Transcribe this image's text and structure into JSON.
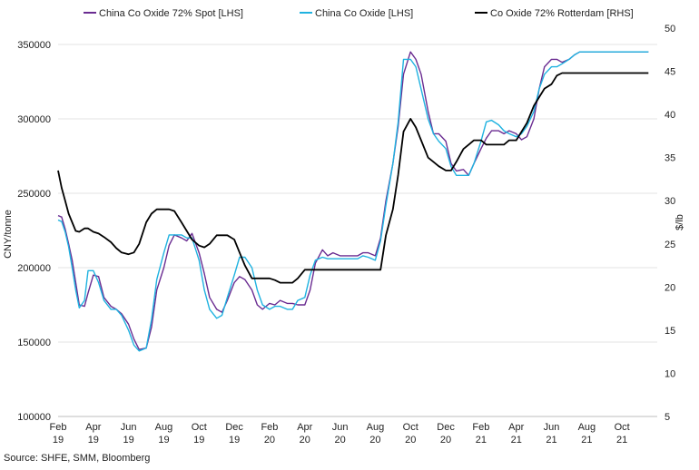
{
  "chart_data": {
    "type": "line",
    "legend_position": "top",
    "grid": true,
    "y_left": {
      "label": "CNY/tonne",
      "min": 100000,
      "max": 350000,
      "ticks": [
        "100000",
        "150000",
        "200000",
        "250000",
        "300000",
        "350000"
      ]
    },
    "y_right": {
      "label": "$/lb",
      "min": 5,
      "max": 50,
      "ticks": [
        "5",
        "10",
        "15",
        "20",
        "25",
        "30",
        "35",
        "40",
        "45",
        "50"
      ]
    },
    "x_ticks": [
      {
        "month": "Feb",
        "year": "19"
      },
      {
        "month": "Apr",
        "year": "19"
      },
      {
        "month": "Jun",
        "year": "19"
      },
      {
        "month": "Aug",
        "year": "19"
      },
      {
        "month": "Oct",
        "year": "19"
      },
      {
        "month": "Dec",
        "year": "19"
      },
      {
        "month": "Feb",
        "year": "20"
      },
      {
        "month": "Apr",
        "year": "20"
      },
      {
        "month": "Jun",
        "year": "20"
      },
      {
        "month": "Aug",
        "year": "20"
      },
      {
        "month": "Oct",
        "year": "20"
      },
      {
        "month": "Dec",
        "year": "20"
      },
      {
        "month": "Feb",
        "year": "21"
      },
      {
        "month": "Apr",
        "year": "21"
      },
      {
        "month": "Jun",
        "year": "21"
      },
      {
        "month": "Aug",
        "year": "21"
      },
      {
        "month": "Oct",
        "year": "21"
      }
    ],
    "series": [
      {
        "name": "China Co Oxide 72% Spot [LHS]",
        "axis": "left",
        "color": "#6a2c91",
        "x": [
          0,
          0.2,
          0.4,
          0.6,
          0.8,
          1,
          1.2,
          1.5,
          1.7,
          2,
          2.3,
          2.6,
          3,
          3.3,
          3.6,
          4,
          4.3,
          4.6,
          5,
          5.3,
          5.6,
          6,
          6.3,
          6.6,
          7,
          7.3,
          7.6,
          8,
          8.3,
          8.6,
          9,
          9.3,
          9.6,
          10,
          10.3,
          10.6,
          11,
          11.3,
          11.6,
          12,
          12.3,
          12.6,
          13,
          13.3,
          13.6,
          14,
          14.3,
          14.6,
          15,
          15.3,
          15.6,
          16,
          16.3,
          16.6,
          17,
          17.3,
          17.6,
          18,
          18.3,
          18.6,
          19,
          19.3,
          19.6,
          20,
          20.3,
          20.6,
          21,
          21.3,
          21.6,
          22,
          22.3,
          22.6,
          23,
          23.3,
          23.6,
          24,
          24.3,
          24.6,
          25,
          25.3,
          25.6,
          26,
          26.3,
          26.6,
          27,
          27.3,
          27.6,
          28,
          28.3,
          28.6,
          29,
          29.3,
          29.6,
          30,
          30.3,
          30.6,
          31,
          31.3,
          31.6,
          32,
          32.3,
          32.6,
          33,
          33.2,
          33.5
        ],
        "y": [
          235000,
          234000,
          226000,
          216000,
          205000,
          190000,
          175000,
          174000,
          183000,
          195000,
          194000,
          180000,
          174000,
          172000,
          169000,
          162000,
          152000,
          145000,
          146000,
          160000,
          185000,
          200000,
          215000,
          222000,
          220000,
          218000,
          223000,
          210000,
          196000,
          180000,
          172000,
          170000,
          178000,
          190000,
          194000,
          192000,
          185000,
          175000,
          172000,
          176000,
          175000,
          178000,
          176000,
          176000,
          175000,
          175000,
          185000,
          203000,
          212000,
          208000,
          210000,
          208000,
          208000,
          208000,
          208000,
          210000,
          210000,
          208000,
          220000,
          245000,
          270000,
          295000,
          330000,
          345000,
          340000,
          330000,
          305000,
          290000,
          290000,
          285000,
          270000,
          265000,
          266000,
          262000,
          270000,
          280000,
          287000,
          292000,
          292000,
          290000,
          292000,
          290000,
          286000,
          288000,
          300000,
          320000,
          335000,
          340000,
          340000,
          338000,
          340000,
          343000,
          345000,
          345000,
          345000,
          345000,
          345000,
          345000,
          345000,
          345000,
          345000,
          345000,
          345000,
          345000,
          345000
        ],
        "x_end": 33.5
      },
      {
        "name": "China Co Oxide [LHS]",
        "axis": "left",
        "color": "#1fb2e0",
        "x": [
          0,
          0.2,
          0.4,
          0.6,
          0.8,
          1,
          1.2,
          1.5,
          1.7,
          2,
          2.3,
          2.6,
          3,
          3.3,
          3.6,
          4,
          4.3,
          4.6,
          5,
          5.3,
          5.6,
          6,
          6.3,
          6.6,
          7,
          7.3,
          7.6,
          8,
          8.3,
          8.6,
          9,
          9.3,
          9.6,
          10,
          10.3,
          10.6,
          11,
          11.3,
          11.6,
          12,
          12.3,
          12.6,
          13,
          13.3,
          13.6,
          14,
          14.3,
          14.6,
          15,
          15.3,
          15.6,
          16,
          16.3,
          16.6,
          17,
          17.3,
          17.6,
          18,
          18.3,
          18.6,
          19,
          19.3,
          19.6,
          20,
          20.3,
          20.6,
          21,
          21.3,
          21.6,
          22,
          22.3,
          22.6,
          23,
          23.3,
          23.6,
          24,
          24.3,
          24.6,
          25,
          25.3,
          25.6,
          26,
          26.3,
          26.6,
          27,
          27.3,
          27.6,
          28,
          28.3,
          28.6,
          29,
          29.3,
          29.6,
          30,
          30.3,
          30.6,
          31,
          31.3,
          31.6,
          32,
          32.3,
          32.6,
          33,
          33.2,
          33.5
        ],
        "y": [
          232000,
          231000,
          224000,
          214000,
          200000,
          185000,
          173000,
          178000,
          198000,
          198000,
          190000,
          178000,
          172000,
          172000,
          168000,
          158000,
          148000,
          144000,
          146000,
          165000,
          192000,
          210000,
          222000,
          222000,
          222000,
          220000,
          220000,
          205000,
          185000,
          172000,
          166000,
          168000,
          180000,
          195000,
          207000,
          207000,
          200000,
          185000,
          175000,
          172000,
          174000,
          174000,
          172000,
          172000,
          178000,
          180000,
          195000,
          205000,
          207000,
          206000,
          206000,
          206000,
          206000,
          206000,
          206000,
          208000,
          207000,
          205000,
          218000,
          242000,
          270000,
          298000,
          340000,
          340000,
          335000,
          320000,
          300000,
          290000,
          285000,
          280000,
          268000,
          262000,
          262000,
          262000,
          270000,
          285000,
          298000,
          299000,
          296000,
          292000,
          290000,
          288000,
          290000,
          295000,
          305000,
          320000,
          330000,
          335000,
          335000,
          337000,
          340000,
          343000,
          345000,
          345000,
          345000,
          345000,
          345000,
          345000,
          345000,
          345000,
          345000,
          345000,
          345000,
          345000,
          345000
        ],
        "x_end": 33.5
      },
      {
        "name": "Co Oxide 72% Rotterdam [RHS]",
        "axis": "right",
        "color": "#000000",
        "x": [
          0,
          0.2,
          0.4,
          0.6,
          0.8,
          1,
          1.2,
          1.5,
          1.7,
          2,
          2.3,
          2.6,
          3,
          3.3,
          3.6,
          4,
          4.3,
          4.6,
          5,
          5.3,
          5.6,
          6,
          6.3,
          6.6,
          7,
          7.3,
          7.6,
          8,
          8.3,
          8.6,
          9,
          9.3,
          9.6,
          10,
          10.3,
          10.6,
          11,
          11.3,
          11.6,
          12,
          12.3,
          12.6,
          13,
          13.3,
          13.6,
          14,
          14.3,
          14.6,
          15,
          15.3,
          15.6,
          16,
          16.3,
          16.6,
          17,
          17.3,
          17.6,
          18,
          18.3,
          18.6,
          19,
          19.3,
          19.6,
          20,
          20.3,
          20.6,
          21,
          21.3,
          21.6,
          22,
          22.3,
          22.6,
          23,
          23.3,
          23.6,
          24,
          24.3,
          24.6,
          25,
          25.3,
          25.6,
          26,
          26.3,
          26.6,
          27,
          27.3,
          27.6,
          28,
          28.3,
          28.6,
          29,
          29.3,
          29.6,
          30,
          30.3,
          30.6,
          31,
          31.3,
          31.6,
          32,
          32.3,
          32.6,
          33,
          33.2,
          33.5
        ],
        "y": [
          33.5,
          31.5,
          30.0,
          28.5,
          27.5,
          26.5,
          26.4,
          26.8,
          26.8,
          26.4,
          26.2,
          25.8,
          25.2,
          24.5,
          24.0,
          23.8,
          24.0,
          25.0,
          27.5,
          28.5,
          29.0,
          29.0,
          29.0,
          28.8,
          27.5,
          26.5,
          25.5,
          24.8,
          24.6,
          25.0,
          26.0,
          26.0,
          26.0,
          25.5,
          24.0,
          22.5,
          21.0,
          21.0,
          21.0,
          21.0,
          20.8,
          20.5,
          20.5,
          20.5,
          21.0,
          22.0,
          22.0,
          22.0,
          22.0,
          22.0,
          22.0,
          22.0,
          22.0,
          22.0,
          22.0,
          22.0,
          22.0,
          22.0,
          22.0,
          26.0,
          29.0,
          33.0,
          38.0,
          39.5,
          38.5,
          37.0,
          35.0,
          34.5,
          34.0,
          33.5,
          33.5,
          34.5,
          36.0,
          36.5,
          37.0,
          37.0,
          36.5,
          36.5,
          36.5,
          36.5,
          37.0,
          37.0,
          38.0,
          39.0,
          41.0,
          42.0,
          43.0,
          43.5,
          44.5,
          44.8,
          44.8,
          44.8,
          44.8,
          44.8,
          44.8,
          44.8,
          44.8,
          44.8,
          44.8,
          44.8,
          44.8,
          44.8,
          44.8,
          44.8,
          44.8
        ],
        "x_end": 33.5
      }
    ]
  },
  "source": "Source: SHFE, SMM, Bloomberg"
}
